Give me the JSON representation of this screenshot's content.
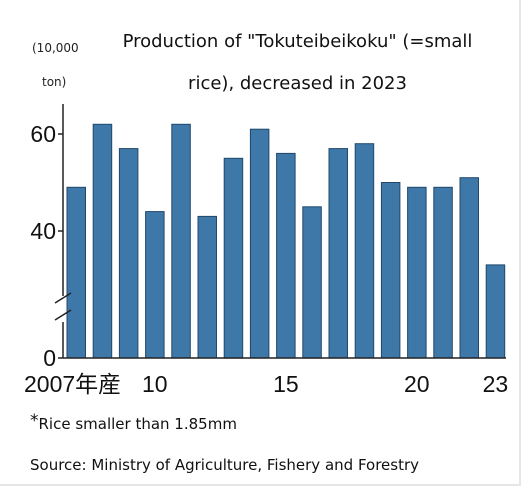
{
  "header": {
    "unit_line1": "(10,000",
    "unit_line2": "ton)",
    "title_line1": "Production of \"Tokuteibeikoku\" (=small",
    "title_line2": "rice), decreased in 2023"
  },
  "footer": {
    "asterisk": "*",
    "note": "Rice smaller than 1.85mm",
    "source": "Source: Ministry of Agriculture, Fishery and Forestry"
  },
  "chart_data": {
    "type": "bar",
    "title": "Production of \"Tokuteibeikoku\" (=small rice), decreased in 2023",
    "ylabel": "(10,000 ton)",
    "xlabel": "",
    "categories": [
      "2007",
      "2008",
      "2009",
      "2010",
      "2011",
      "2012",
      "2013",
      "2014",
      "2015",
      "2016",
      "2017",
      "2018",
      "2019",
      "2020",
      "2021",
      "2022",
      "2023"
    ],
    "values": [
      49,
      62,
      57,
      44,
      62,
      43,
      55,
      61,
      56,
      45,
      57,
      58,
      50,
      49,
      49,
      51,
      33
    ],
    "y_ticks": [
      "0",
      "40",
      "60"
    ],
    "x_ticks": [
      {
        "category": "2007",
        "label": "2007年産"
      },
      {
        "category": "2010",
        "label": "10"
      },
      {
        "category": "2015",
        "label": "15"
      },
      {
        "category": "2020",
        "label": "20"
      },
      {
        "category": "2023",
        "label": "23"
      }
    ],
    "axis_break": "between 0 and 40",
    "grid": false,
    "bar_color": "#3e78a8",
    "bar_edge_color": "#20486c"
  }
}
